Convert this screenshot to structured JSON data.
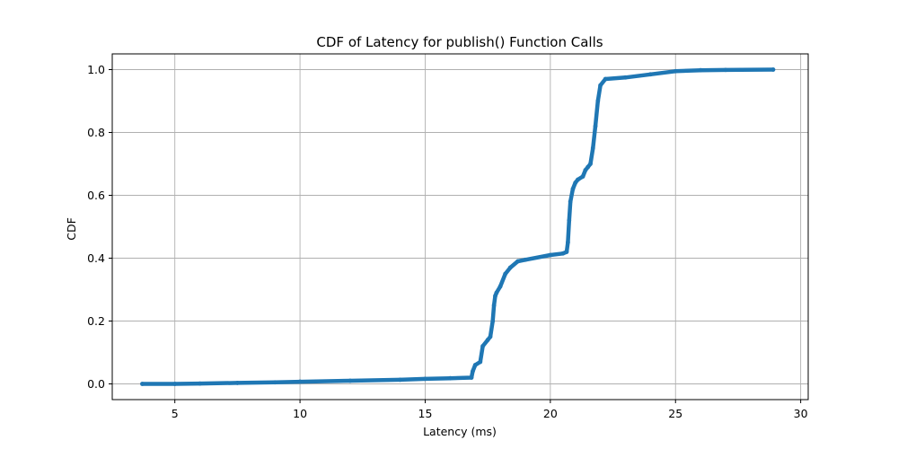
{
  "chart_data": {
    "type": "line",
    "title": "CDF of Latency for publish() Function Calls",
    "xlabel": "Latency (ms)",
    "ylabel": "CDF",
    "xlim": [
      2.5,
      30.3
    ],
    "ylim": [
      -0.05,
      1.05
    ],
    "xticks": [
      5,
      10,
      15,
      20,
      25,
      30
    ],
    "yticks": [
      0.0,
      0.2,
      0.4,
      0.6,
      0.8,
      1.0
    ],
    "ytick_labels": [
      "0.0",
      "0.2",
      "0.4",
      "0.6",
      "0.8",
      "1.0"
    ],
    "grid": true,
    "marker": "dot",
    "series": [
      {
        "color": "#1f77b4",
        "x": [
          3.7,
          5.0,
          6.0,
          7.5,
          9.0,
          10.0,
          12.0,
          14.0,
          15.0,
          16.0,
          16.85,
          16.9,
          17.0,
          17.2,
          17.3,
          17.5,
          17.6,
          17.7,
          17.75,
          17.8,
          17.85,
          18.0,
          18.2,
          18.4,
          18.7,
          19.0,
          20.0,
          20.5,
          20.65,
          20.7,
          20.75,
          20.8,
          20.9,
          21.0,
          21.1,
          21.3,
          21.4,
          21.5,
          21.6,
          21.7,
          21.8,
          21.9,
          22.0,
          22.2,
          23.0,
          24.0,
          25.0,
          26.0,
          27.0,
          28.9
        ],
        "y": [
          0.0,
          0.0,
          0.001,
          0.003,
          0.005,
          0.007,
          0.01,
          0.013,
          0.016,
          0.018,
          0.02,
          0.04,
          0.06,
          0.07,
          0.12,
          0.14,
          0.15,
          0.2,
          0.25,
          0.28,
          0.29,
          0.31,
          0.35,
          0.37,
          0.39,
          0.395,
          0.41,
          0.415,
          0.42,
          0.45,
          0.52,
          0.58,
          0.62,
          0.64,
          0.65,
          0.66,
          0.68,
          0.69,
          0.7,
          0.75,
          0.82,
          0.9,
          0.95,
          0.97,
          0.975,
          0.985,
          0.995,
          0.998,
          0.999,
          1.0
        ]
      }
    ]
  }
}
